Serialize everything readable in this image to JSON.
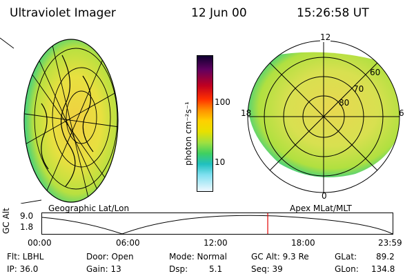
{
  "header": {
    "instrument": "Ultraviolet Imager",
    "date": "12 Jun 00",
    "time": "15:26:58 UT"
  },
  "left_panel": {
    "caption": "Geographic Lat/Lon"
  },
  "right_panel": {
    "caption": "Apex MLat/MLT",
    "mlt_labels": [
      "12",
      "18",
      "6",
      "0"
    ],
    "mlat_labels": [
      "60",
      "70",
      "80"
    ]
  },
  "colorbar": {
    "unit_label": "photon cm⁻²s⁻¹",
    "ticks": [
      "100",
      "10"
    ]
  },
  "timeline": {
    "ylabel": "GC Alt",
    "y_ticks": [
      "9.0",
      "1.8"
    ],
    "x_ticks": [
      "00:00",
      "06:00",
      "12:00",
      "18:00",
      "23:59"
    ],
    "marker_hour": 15.45
  },
  "status": {
    "flt": "Flt: LBHL",
    "ip": "IP: 36.0",
    "door": "Door: Open",
    "gain": "Gain: 13",
    "mode": "Mode: Normal",
    "dsp_label": "Dsp:",
    "dsp_value": "5.1",
    "gc_alt": "GC Alt: 9.3 Re",
    "seq": "Seq: 39",
    "glat_label": "GLat:",
    "glat_value": "89.2",
    "glon_label": "GLon:",
    "glon_value": "134.8"
  }
}
